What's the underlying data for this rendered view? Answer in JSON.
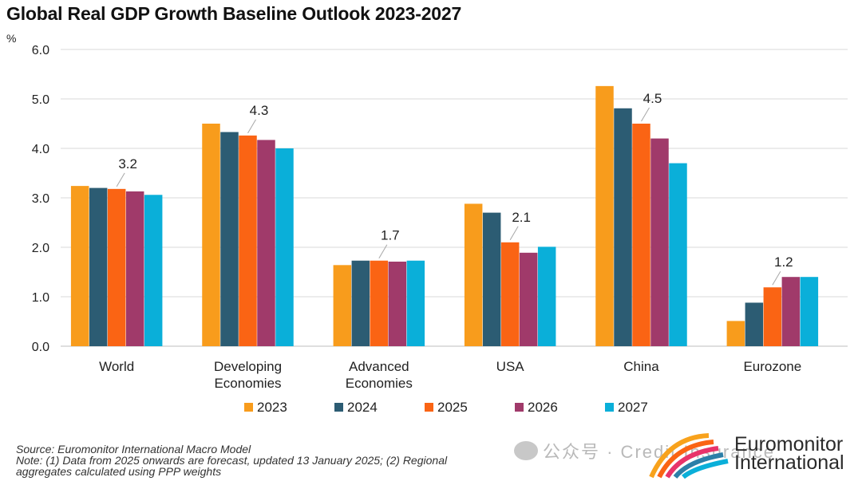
{
  "title": "Global Real GDP Growth Baseline Outlook 2023-2027",
  "footer": {
    "source": "Source: Euromonitor International Macro Model",
    "note_line1": "Note: (1) Data from 2025 onwards are forecast, updated 13 January 2025; (2) Regional",
    "note_line2": "aggregates calculated using PPP weights"
  },
  "watermark": {
    "text": "公众号 · Credit Insurance",
    "icon": "wechat-icon"
  },
  "brand": {
    "line1": "Euromonitor",
    "line2": "International",
    "logo": "euromonitor-arcs-logo"
  },
  "colors": {
    "2023": "#F89C1C",
    "2024": "#2C5C73",
    "2025": "#FA6414",
    "2026": "#A03A6A",
    "2027": "#0AAFD9",
    "grid": "#D9D9D9"
  },
  "chart_data": {
    "type": "bar",
    "title": "Global Real GDP Growth Baseline Outlook 2023-2027",
    "unit_label": "%",
    "ylabel": "",
    "xlabel": "",
    "ylim": [
      0,
      6
    ],
    "yticks": [
      "0.0",
      "1.0",
      "2.0",
      "3.0",
      "4.0",
      "5.0",
      "6.0"
    ],
    "grid": true,
    "legend_position": "bottom",
    "categories": [
      [
        "World"
      ],
      [
        "Developing",
        "Economies"
      ],
      [
        "Advanced",
        "Economies"
      ],
      [
        "USA"
      ],
      [
        "China"
      ],
      [
        "Eurozone"
      ]
    ],
    "series": [
      {
        "name": "2023",
        "values": [
          3.24,
          4.5,
          1.64,
          2.88,
          5.26,
          0.51
        ]
      },
      {
        "name": "2024",
        "values": [
          3.2,
          4.33,
          1.73,
          2.7,
          4.81,
          0.88
        ]
      },
      {
        "name": "2025",
        "values": [
          3.18,
          4.26,
          1.73,
          2.1,
          4.5,
          1.19
        ]
      },
      {
        "name": "2026",
        "values": [
          3.13,
          4.17,
          1.71,
          1.89,
          4.2,
          1.4
        ]
      },
      {
        "name": "2027",
        "values": [
          3.06,
          4.0,
          1.73,
          2.01,
          3.7,
          1.4
        ]
      }
    ],
    "annotations": [
      {
        "category_index": 0,
        "series_index": 2,
        "text": "3.2"
      },
      {
        "category_index": 1,
        "series_index": 2,
        "text": "4.3"
      },
      {
        "category_index": 2,
        "series_index": 2,
        "text": "1.7"
      },
      {
        "category_index": 3,
        "series_index": 2,
        "text": "2.1"
      },
      {
        "category_index": 4,
        "series_index": 2,
        "text": "4.5"
      },
      {
        "category_index": 5,
        "series_index": 2,
        "text": "1.2"
      }
    ]
  }
}
